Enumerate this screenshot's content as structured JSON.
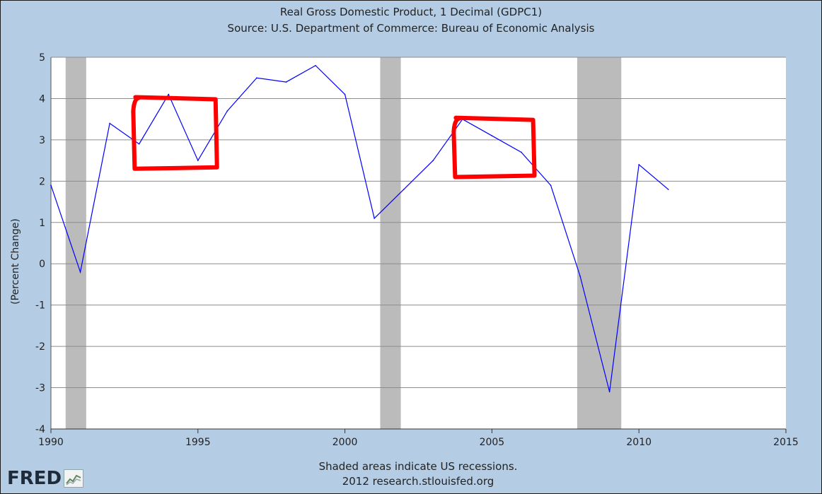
{
  "header": {
    "title": "Real Gross Domestic Product, 1 Decimal (GDPC1)",
    "subtitle": "Source: U.S. Department of Commerce: Bureau of Economic Analysis"
  },
  "footer": {
    "note": "Shaded areas indicate US recessions.",
    "credit": "2012 research.stlouisfed.org",
    "logo_text": "FRED"
  },
  "colors": {
    "background": "#b5cde4",
    "plot_area": "#ffffff",
    "series_line": "#0000ff",
    "recession_band": "#bbbbbb",
    "annotation_box": "#ff0000",
    "grid": "#8c8c8c"
  },
  "chart_data": {
    "type": "line",
    "title": "Real Gross Domestic Product, 1 Decimal (GDPC1)",
    "subtitle": "Source: U.S. Department of Commerce: Bureau of Economic Analysis",
    "xlabel": "",
    "ylabel": "(Percent Change)",
    "xlim": [
      1990,
      2015
    ],
    "ylim": [
      -4,
      5
    ],
    "x_ticks": [
      1990,
      1995,
      2000,
      2005,
      2010,
      2015
    ],
    "y_ticks": [
      5,
      4,
      3,
      2,
      1,
      0,
      -1,
      -2,
      -3,
      -4
    ],
    "grid": true,
    "series": [
      {
        "x": [
          1990,
          1991,
          1992,
          1993,
          1994,
          1995,
          1996,
          1997,
          1998,
          1999,
          2000,
          2001,
          2002,
          2003,
          2004,
          2005,
          2006,
          2007,
          2008,
          2009,
          2010,
          2011
        ],
        "y": [
          1.9,
          -0.2,
          3.4,
          2.9,
          4.1,
          2.5,
          3.7,
          4.5,
          4.4,
          4.8,
          4.1,
          1.1,
          1.8,
          2.5,
          3.5,
          3.1,
          2.7,
          1.9,
          -0.3,
          -3.1,
          2.4,
          1.8
        ]
      }
    ],
    "recession_bands": [
      [
        1990.5,
        1991.2
      ],
      [
        2001.2,
        2001.9
      ],
      [
        2007.9,
        2009.4
      ]
    ],
    "annotations": [
      {
        "type": "hand-drawn box",
        "color": "#ff0000",
        "x_range": [
          1992.8,
          1995.6
        ],
        "y_range": [
          2.3,
          4.0
        ]
      },
      {
        "type": "hand-drawn box",
        "color": "#ff0000",
        "x_range": [
          2003.7,
          2006.4
        ],
        "y_range": [
          2.1,
          3.5
        ]
      }
    ]
  }
}
